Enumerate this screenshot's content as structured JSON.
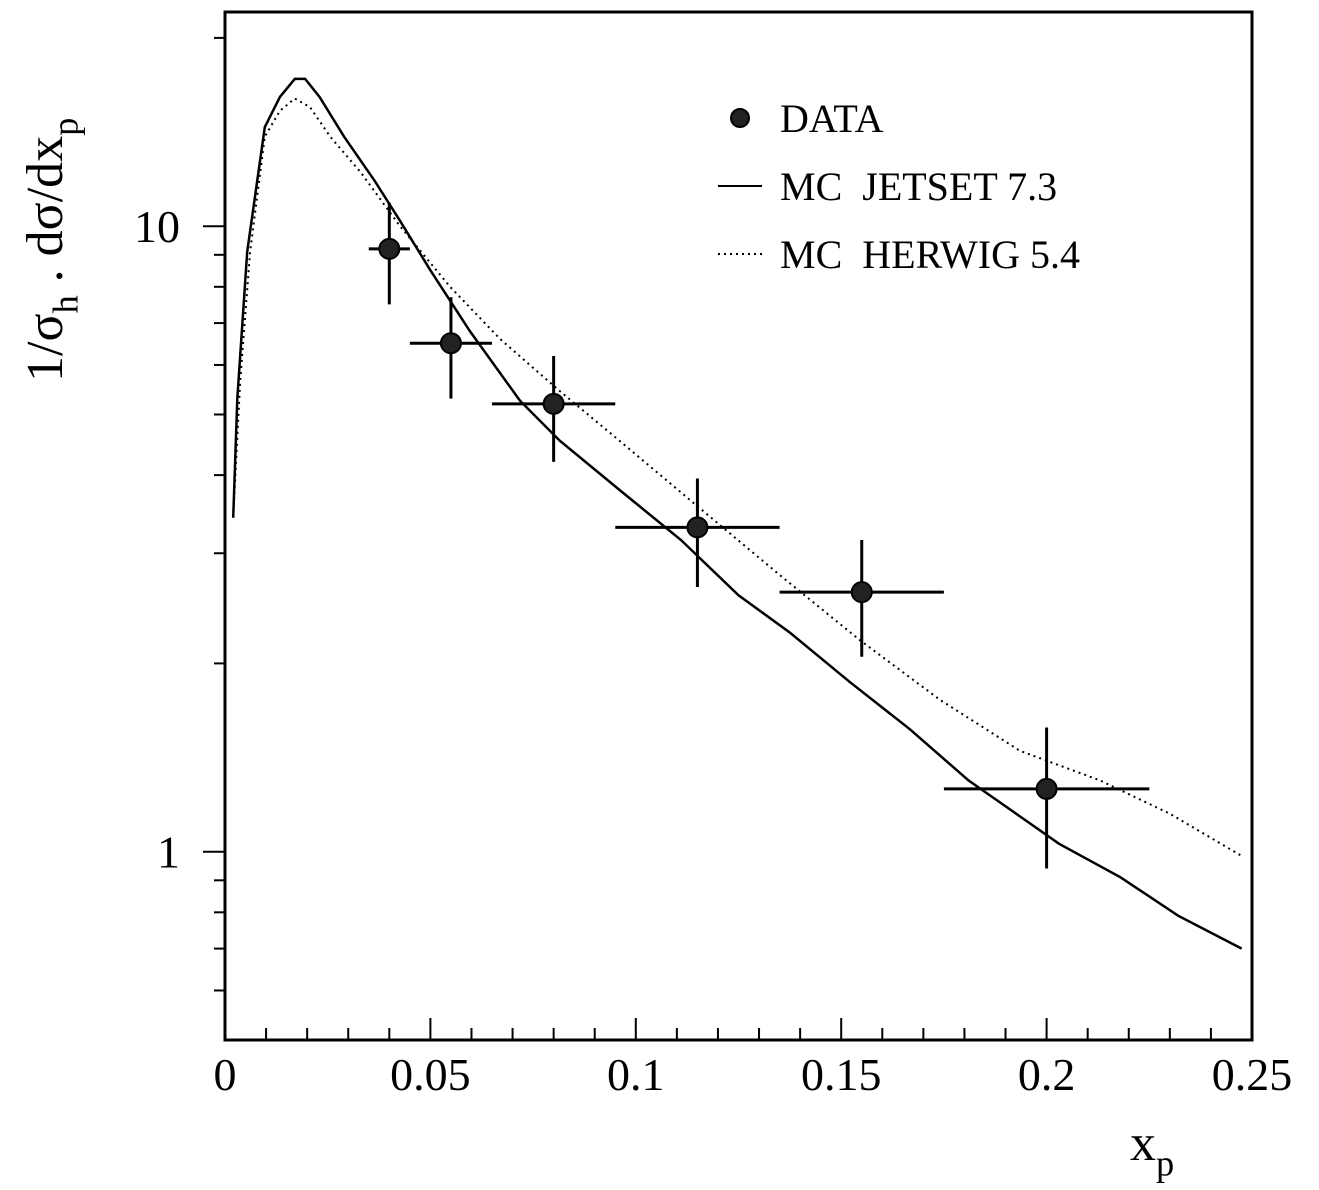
{
  "chart_data": {
    "type": "line",
    "x_label": [
      "x",
      "p"
    ],
    "y_label": [
      "1/σ",
      "h",
      " . dσ/dx",
      "p"
    ],
    "xlim": [
      0,
      0.25
    ],
    "xticks": [
      0,
      0.05,
      0.1,
      0.15,
      0.2,
      0.25
    ],
    "xminorticks": [
      0.01,
      0.02,
      0.03,
      0.04,
      0.06,
      0.07,
      0.08,
      0.09,
      0.11,
      0.12,
      0.13,
      0.14,
      0.16,
      0.17,
      0.18,
      0.19,
      0.21,
      0.22,
      0.23,
      0.24
    ],
    "ylim": [
      0.5,
      22
    ],
    "ylog": true,
    "yticks": [
      1,
      10
    ],
    "yminorticks": [
      0.6,
      0.7,
      0.8,
      0.9,
      2,
      3,
      4,
      5,
      6,
      7,
      8,
      9,
      20
    ],
    "legend": "top-right",
    "series": [
      {
        "name": "DATA",
        "style": "points",
        "color": "#000000",
        "x": [
          0.04,
          0.055,
          0.08,
          0.115,
          0.155,
          0.2
        ],
        "values": [
          9.2,
          6.5,
          5.2,
          3.3,
          2.6,
          1.26
        ],
        "xerr": [
          0.005,
          0.01,
          0.015,
          0.02,
          0.02,
          0.025
        ],
        "yerr": [
          1.7,
          1.2,
          1.0,
          0.65,
          0.55,
          0.32
        ]
      },
      {
        "name": "MC  JETSET 7.3",
        "style": "solid",
        "color": "#000000",
        "x": [
          0.002,
          0.003,
          0.0054,
          0.0097,
          0.0134,
          0.017,
          0.0195,
          0.023,
          0.029,
          0.0365,
          0.0426,
          0.05,
          0.0596,
          0.0718,
          0.0815,
          0.0962,
          0.111,
          0.125,
          0.1375,
          0.152,
          0.1667,
          0.181,
          0.191,
          0.203,
          0.218,
          0.232,
          0.2475
        ],
        "values": [
          3.42,
          5.3,
          9.1,
          14.4,
          16.1,
          17.2,
          17.2,
          16.1,
          13.9,
          11.8,
          10.2,
          8.5,
          6.8,
          5.26,
          4.54,
          3.78,
          3.15,
          2.57,
          2.24,
          1.87,
          1.57,
          1.3,
          1.17,
          1.03,
          0.91,
          0.79,
          0.7
        ]
      },
      {
        "name": "MC  HERWIG 5.4",
        "style": "dotted",
        "color": "#000000",
        "x": [
          0.002,
          0.0037,
          0.0061,
          0.0097,
          0.0134,
          0.017,
          0.0207,
          0.0256,
          0.033,
          0.0426,
          0.0548,
          0.067,
          0.0815,
          0.096,
          0.1156,
          0.135,
          0.1545,
          0.174,
          0.1935,
          0.213,
          0.23,
          0.248
        ],
        "values": [
          3.42,
          5.65,
          9.1,
          13.9,
          15.3,
          16.0,
          15.5,
          13.9,
          12.2,
          10.0,
          8.0,
          6.6,
          5.45,
          4.54,
          3.54,
          2.77,
          2.18,
          1.75,
          1.45,
          1.3,
          1.15,
          0.98
        ]
      }
    ]
  }
}
